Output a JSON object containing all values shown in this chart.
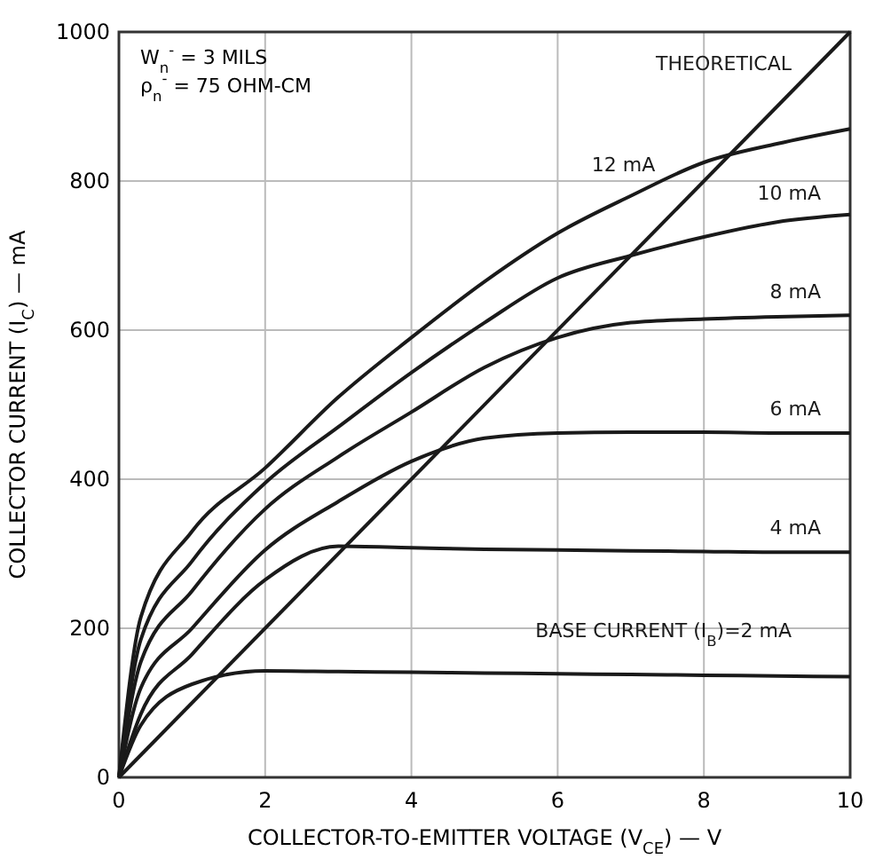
{
  "chart_data": {
    "type": "line",
    "xlabel": "COLLECTOR-TO-EMITTER VOLTAGE (V$_{CE}$) — V",
    "ylabel": "COLLECTOR CURRENT (I$_{C}$) — mA",
    "x": [
      0,
      0.3,
      1,
      2,
      3,
      4,
      5,
      6,
      7,
      8,
      9,
      10
    ],
    "series": [
      {
        "name": "THEORETICAL",
        "color": "#1a1a1a",
        "x": [
          0,
          10
        ],
        "values": [
          0,
          1000
        ]
      },
      {
        "name": "12 mA",
        "color": "#1a1a1a",
        "values": [
          0,
          215,
          330,
          415,
          510,
          590,
          665,
          730,
          780,
          825,
          850,
          870
        ]
      },
      {
        "name": "10 mA",
        "color": "#1a1a1a",
        "values": [
          0,
          185,
          290,
          395,
          470,
          543,
          610,
          670,
          700,
          725,
          745,
          755
        ]
      },
      {
        "name": "8 mA",
        "color": "#1a1a1a",
        "values": [
          0,
          155,
          250,
          360,
          430,
          490,
          550,
          590,
          610,
          615,
          618,
          620
        ]
      },
      {
        "name": "6 mA",
        "color": "#1a1a1a",
        "values": [
          0,
          120,
          200,
          305,
          370,
          424,
          455,
          462,
          463,
          463,
          462,
          462
        ]
      },
      {
        "name": "4 mA",
        "color": "#1a1a1a",
        "values": [
          0,
          85,
          165,
          265,
          310,
          308,
          306,
          305,
          304,
          303,
          302,
          302
        ]
      },
      {
        "name": "BASE CURRENT (I$_{B}$)=2 mA",
        "color": "#1a1a1a",
        "values": [
          0,
          70,
          125,
          143,
          142,
          141,
          140,
          139,
          138,
          137,
          136,
          135
        ]
      }
    ],
    "xlim": [
      0,
      10
    ],
    "ylim": [
      0,
      1000
    ],
    "xticks": [
      0,
      2,
      4,
      6,
      8,
      10
    ],
    "yticks": [
      0,
      200,
      400,
      600,
      800,
      1000
    ],
    "grid": true,
    "line_style": "solid",
    "marker": "none",
    "annotations": [
      "W$_{n}$$^{-}$ = 3 MILS",
      "ρ$_{n}$$^{-}$ = 75 OHM-CM"
    ]
  }
}
